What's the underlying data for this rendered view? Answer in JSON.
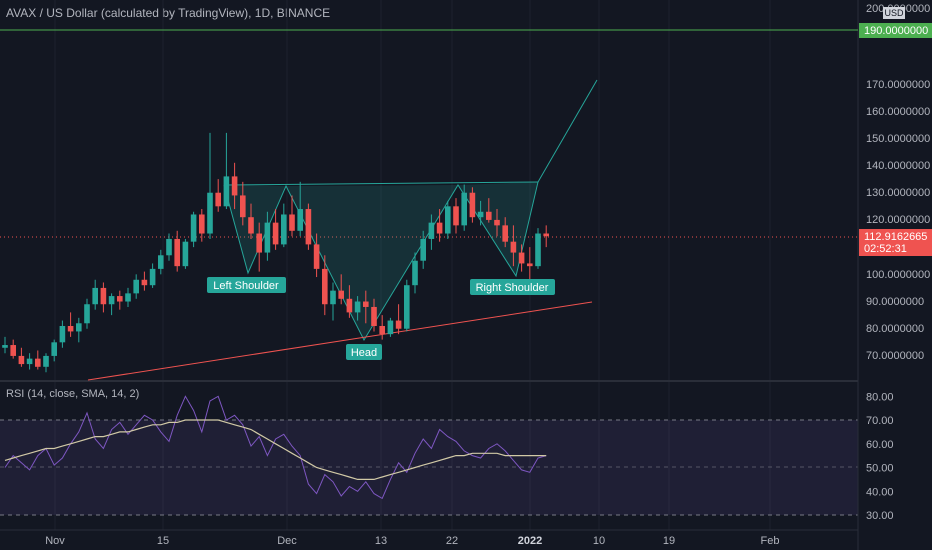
{
  "header": {
    "title": "AVAX / US Dollar (calculated by TradingView), 1D, BINANCE"
  },
  "rsi_title": "RSI (14, close, SMA, 14, 2)",
  "price_axis": {
    "unit_label": "USD",
    "ticks": [
      "200.0000000",
      "170.0000000",
      "160.0000000",
      "150.0000000",
      "140.0000000",
      "130.0000000",
      "120.0000000",
      "110.0000000",
      "100.0000000",
      "90.0000000",
      "80.0000000",
      "70.0000000"
    ],
    "green_line_label": "190.0000000",
    "current_price": "112.9162665",
    "countdown": "02:52:31"
  },
  "rsi_axis": {
    "ticks": [
      "80.00",
      "70.00",
      "60.00",
      "50.00",
      "40.00",
      "30.00"
    ]
  },
  "time_axis": {
    "labels": [
      "Nov",
      "15",
      "Dec",
      "13",
      "22",
      "2022",
      "10",
      "19",
      "Feb"
    ]
  },
  "annotations": {
    "left_shoulder": "Left Shoulder",
    "head": "Head",
    "right_shoulder": "Right Shoulder"
  },
  "colors": {
    "up": "#26a69a",
    "down": "#ef5350",
    "background": "#131722",
    "green_line": "#4caf50",
    "rsi_band": "#7e57c2"
  },
  "chart_data": {
    "type": "candlestick",
    "price_level_line": 190,
    "current_price": 112.9162665,
    "candles": [
      [
        72,
        76,
        70,
        73
      ],
      [
        73,
        75,
        68,
        69
      ],
      [
        69,
        72,
        65,
        66
      ],
      [
        66,
        70,
        64,
        68
      ],
      [
        68,
        71,
        64,
        65
      ],
      [
        65,
        70,
        63,
        69
      ],
      [
        69,
        75,
        67,
        74
      ],
      [
        74,
        82,
        72,
        80
      ],
      [
        80,
        85,
        76,
        78
      ],
      [
        78,
        83,
        74,
        81
      ],
      [
        81,
        90,
        79,
        88
      ],
      [
        88,
        97,
        86,
        94
      ],
      [
        94,
        96,
        85,
        88
      ],
      [
        88,
        92,
        84,
        91
      ],
      [
        91,
        93,
        86,
        89
      ],
      [
        89,
        94,
        87,
        92
      ],
      [
        92,
        99,
        90,
        97
      ],
      [
        97,
        100,
        93,
        95
      ],
      [
        95,
        103,
        94,
        101
      ],
      [
        101,
        108,
        99,
        106
      ],
      [
        106,
        114,
        104,
        112
      ],
      [
        112,
        115,
        100,
        102
      ],
      [
        102,
        112,
        101,
        111
      ],
      [
        111,
        122,
        109,
        121
      ],
      [
        121,
        123,
        111,
        114
      ],
      [
        114,
        151,
        112,
        129
      ],
      [
        129,
        134,
        122,
        124
      ],
      [
        124,
        151,
        123,
        135
      ],
      [
        135,
        140,
        123,
        128
      ],
      [
        128,
        133,
        117,
        120
      ],
      [
        120,
        125,
        112,
        114
      ],
      [
        114,
        118,
        100,
        107
      ],
      [
        107,
        122,
        104,
        118
      ],
      [
        118,
        123,
        108,
        110
      ],
      [
        110,
        125,
        109,
        121
      ],
      [
        121,
        128,
        113,
        115
      ],
      [
        115,
        133,
        113,
        123
      ],
      [
        123,
        125,
        108,
        110
      ],
      [
        110,
        114,
        98,
        101
      ],
      [
        101,
        106,
        84,
        88
      ],
      [
        88,
        96,
        82,
        93
      ],
      [
        93,
        99,
        88,
        90
      ],
      [
        90,
        95,
        83,
        85
      ],
      [
        85,
        91,
        82,
        89
      ],
      [
        89,
        93,
        81,
        87
      ],
      [
        87,
        90,
        78,
        80
      ],
      [
        80,
        84,
        75,
        77
      ],
      [
        77,
        83,
        76,
        82
      ],
      [
        82,
        88,
        77,
        79
      ],
      [
        79,
        97,
        78,
        95
      ],
      [
        95,
        107,
        92,
        104
      ],
      [
        104,
        115,
        101,
        112
      ],
      [
        112,
        121,
        108,
        118
      ],
      [
        118,
        123,
        111,
        114
      ],
      [
        114,
        126,
        112,
        124
      ],
      [
        124,
        127,
        114,
        117
      ],
      [
        117,
        132,
        115,
        129
      ],
      [
        129,
        131,
        118,
        120
      ],
      [
        120,
        126,
        117,
        122
      ],
      [
        122,
        127,
        118,
        119
      ],
      [
        119,
        123,
        113,
        117
      ],
      [
        117,
        120,
        109,
        111
      ],
      [
        111,
        117,
        102,
        107
      ],
      [
        107,
        110,
        100,
        103
      ],
      [
        103,
        109,
        97,
        102
      ],
      [
        102,
        116,
        101,
        114
      ],
      [
        114,
        117,
        109,
        113
      ]
    ],
    "rsi": [
      50,
      55,
      52,
      49,
      55,
      58,
      51,
      54,
      60,
      65,
      73,
      62,
      58,
      66,
      69,
      64,
      68,
      72,
      70,
      65,
      61,
      72,
      80,
      74,
      65,
      78,
      80,
      70,
      72,
      68,
      59,
      63,
      55,
      62,
      64,
      59,
      55,
      43,
      39,
      47,
      44,
      38,
      42,
      40,
      44,
      39,
      37,
      45,
      52,
      48,
      56,
      62,
      58,
      66,
      63,
      61,
      57,
      55,
      54,
      58,
      60,
      57,
      53,
      49,
      48,
      54,
      55
    ],
    "rsi_sma": [
      53,
      54,
      55,
      56,
      57,
      58,
      58,
      59,
      60,
      61,
      62,
      63,
      63,
      64,
      65,
      65,
      66,
      67,
      68,
      68,
      69,
      69,
      70,
      70,
      70,
      70,
      70,
      69,
      68,
      67,
      66,
      64,
      62,
      60,
      58,
      56,
      54,
      52,
      50,
      49,
      48,
      47,
      46,
      45,
      45,
      45,
      46,
      47,
      48,
      49,
      50,
      51,
      52,
      53,
      54,
      55,
      55,
      56,
      56,
      56,
      56,
      55,
      55,
      55,
      55,
      55,
      55
    ],
    "pattern": {
      "left_shoulder_low": 100,
      "head_low": 75,
      "right_shoulder_low": 98,
      "neckline_high": 133,
      "projection_target": 171
    },
    "trendline": {
      "from": 66,
      "to": 88
    }
  }
}
